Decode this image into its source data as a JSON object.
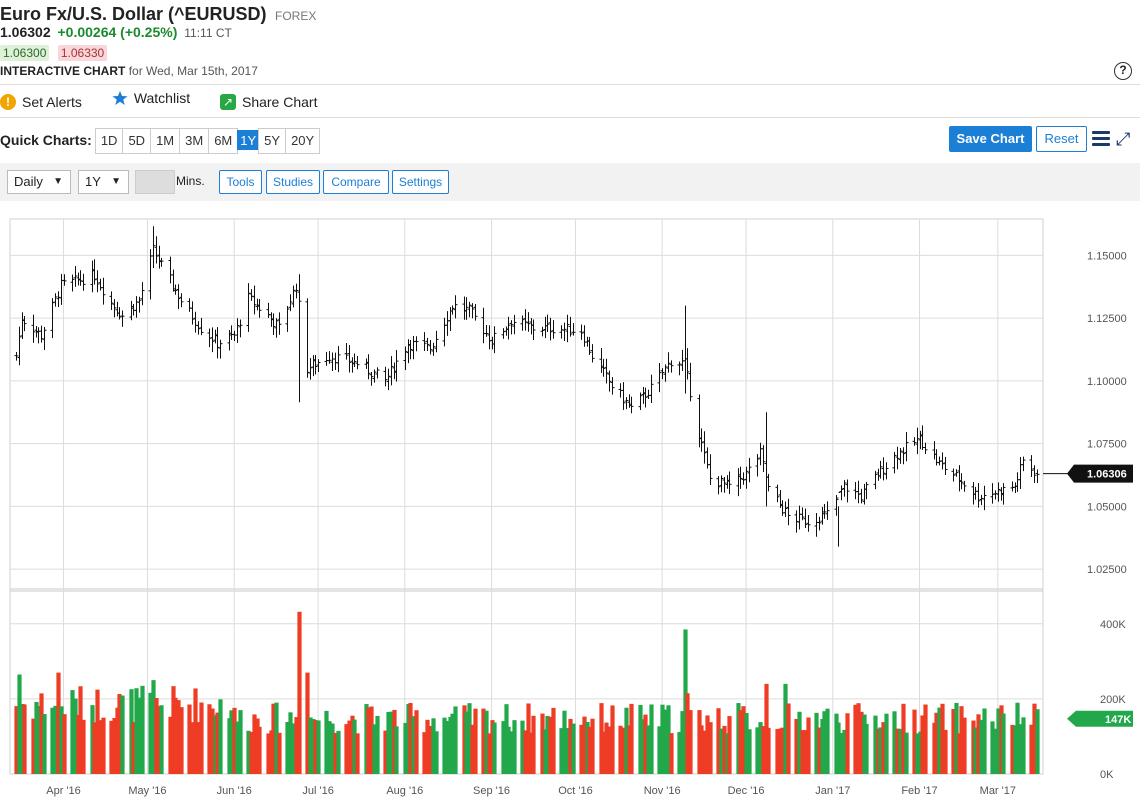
{
  "header": {
    "title": "Euro Fx/U.S. Dollar (^EURUSD)",
    "exchange": "FOREX",
    "last": "1.06302",
    "change": "+0.00264 (+0.25%)",
    "time": "11:11 CT",
    "bid": "1.06300",
    "ask": "1.06330",
    "chart_label": "INTERACTIVE CHART",
    "chart_date": "for Wed, Mar 15th, 2017",
    "help_symbol": "?"
  },
  "actions": {
    "alerts": "Set Alerts",
    "watchlist": "Watchlist",
    "share": "Share Chart"
  },
  "quick": {
    "label": "Quick Charts:",
    "ranges": [
      "1D",
      "5D",
      "1M",
      "3M",
      "6M",
      "1Y",
      "5Y",
      "20Y"
    ],
    "active": "1Y",
    "save": "Save Chart",
    "reset": "Reset"
  },
  "toolbar": {
    "interval": "Daily",
    "period": "1Y",
    "mins_label": "Mins.",
    "tools": "Tools",
    "studies": "Studies",
    "compare": "Compare",
    "settings": "Settings"
  },
  "chart_data": {
    "type": "ohlc",
    "price_ticks": [
      "1.15000",
      "1.12500",
      "1.10000",
      "1.07500",
      "1.05000",
      "1.02500"
    ],
    "price_ylim": [
      1.0175,
      1.1645
    ],
    "last_price_label": "1.06306",
    "last_price": 1.06306,
    "volume_ticks": [
      "400K",
      "200K",
      "0K"
    ],
    "volume_ylim": [
      0,
      490000
    ],
    "last_volume_label": "147K",
    "last_volume": 147000,
    "x_labels": [
      "Apr '16",
      "May '16",
      "Jun '16",
      "Jul '16",
      "Aug '16",
      "Sep '16",
      "Oct '16",
      "Nov '16",
      "Dec '16",
      "Jan '17",
      "Feb '17",
      "Mar '17"
    ],
    "x_dates": [
      "2016-03-15",
      "2017-03-15"
    ],
    "colors": {
      "up": "#22a84a",
      "down": "#ee3d24",
      "price_tag": "#111111",
      "volume_tag": "#22a84a"
    },
    "grid": true,
    "price_anchors": [
      [
        "2016-03-15",
        1.11
      ],
      [
        "2016-03-17",
        1.125
      ],
      [
        "2016-03-24",
        1.118
      ],
      [
        "2016-03-31",
        1.138
      ],
      [
        "2016-04-06",
        1.14
      ],
      [
        "2016-04-12",
        1.142
      ],
      [
        "2016-04-18",
        1.131
      ],
      [
        "2016-04-22",
        1.126
      ],
      [
        "2016-04-28",
        1.132
      ],
      [
        "2016-05-03",
        1.152
      ],
      [
        "2016-05-09",
        1.14
      ],
      [
        "2016-05-13",
        1.132
      ],
      [
        "2016-05-20",
        1.121
      ],
      [
        "2016-05-26",
        1.115
      ],
      [
        "2016-06-01",
        1.118
      ],
      [
        "2016-06-06",
        1.133
      ],
      [
        "2016-06-13",
        1.126
      ],
      [
        "2016-06-17",
        1.121
      ],
      [
        "2016-06-23",
        1.138
      ],
      [
        "2016-06-27",
        1.105
      ],
      [
        "2016-07-05",
        1.11
      ],
      [
        "2016-07-15",
        1.107
      ],
      [
        "2016-07-25",
        1.1
      ],
      [
        "2016-08-02",
        1.115
      ],
      [
        "2016-08-10",
        1.113
      ],
      [
        "2016-08-18",
        1.13
      ],
      [
        "2016-08-24",
        1.128
      ],
      [
        "2016-09-01",
        1.116
      ],
      [
        "2016-09-08",
        1.124
      ],
      [
        "2016-09-16",
        1.121
      ],
      [
        "2016-09-23",
        1.121
      ],
      [
        "2016-10-03",
        1.12
      ],
      [
        "2016-10-07",
        1.11
      ],
      [
        "2016-10-14",
        1.098
      ],
      [
        "2016-10-21",
        1.089
      ],
      [
        "2016-10-28",
        1.097
      ],
      [
        "2016-11-04",
        1.108
      ],
      [
        "2016-11-09",
        1.107
      ],
      [
        "2016-11-14",
        1.079
      ],
      [
        "2016-11-18",
        1.061
      ],
      [
        "2016-11-25",
        1.058
      ],
      [
        "2016-12-01",
        1.063
      ],
      [
        "2016-12-06",
        1.071
      ],
      [
        "2016-12-09",
        1.057
      ],
      [
        "2016-12-16",
        1.046
      ],
      [
        "2016-12-23",
        1.044
      ],
      [
        "2016-12-30",
        1.047
      ],
      [
        "2017-01-05",
        1.058
      ],
      [
        "2017-01-11",
        1.054
      ],
      [
        "2017-01-17",
        1.063
      ],
      [
        "2017-01-24",
        1.071
      ],
      [
        "2017-02-01",
        1.077
      ],
      [
        "2017-02-08",
        1.067
      ],
      [
        "2017-02-15",
        1.061
      ],
      [
        "2017-02-22",
        1.054
      ],
      [
        "2017-03-01",
        1.056
      ],
      [
        "2017-03-07",
        1.058
      ],
      [
        "2017-03-10",
        1.068
      ],
      [
        "2017-03-15",
        1.063
      ]
    ],
    "price_spikes": [
      {
        "date": "2016-05-03",
        "high": 1.1616,
        "low": 1.145
      },
      {
        "date": "2016-06-24",
        "high": 1.1425,
        "low": 1.0915
      },
      {
        "date": "2016-11-09",
        "high": 1.13,
        "low": 1.095
      },
      {
        "date": "2016-12-08",
        "high": 1.0875,
        "low": 1.05
      },
      {
        "date": "2017-01-03",
        "high": 1.05,
        "low": 1.034
      }
    ],
    "volume_base": 150000,
    "volume_spikes": [
      {
        "date": "2016-06-24",
        "value": 432000
      },
      {
        "date": "2016-06-27",
        "value": 270000
      },
      {
        "date": "2016-11-09",
        "value": 385000
      },
      {
        "date": "2016-11-10",
        "value": 215000
      },
      {
        "date": "2016-03-16",
        "value": 265000
      },
      {
        "date": "2016-03-30",
        "value": 270000
      },
      {
        "date": "2016-05-03",
        "value": 250000
      },
      {
        "date": "2016-12-08",
        "value": 240000
      },
      {
        "date": "2016-12-15",
        "value": 240000
      }
    ]
  }
}
